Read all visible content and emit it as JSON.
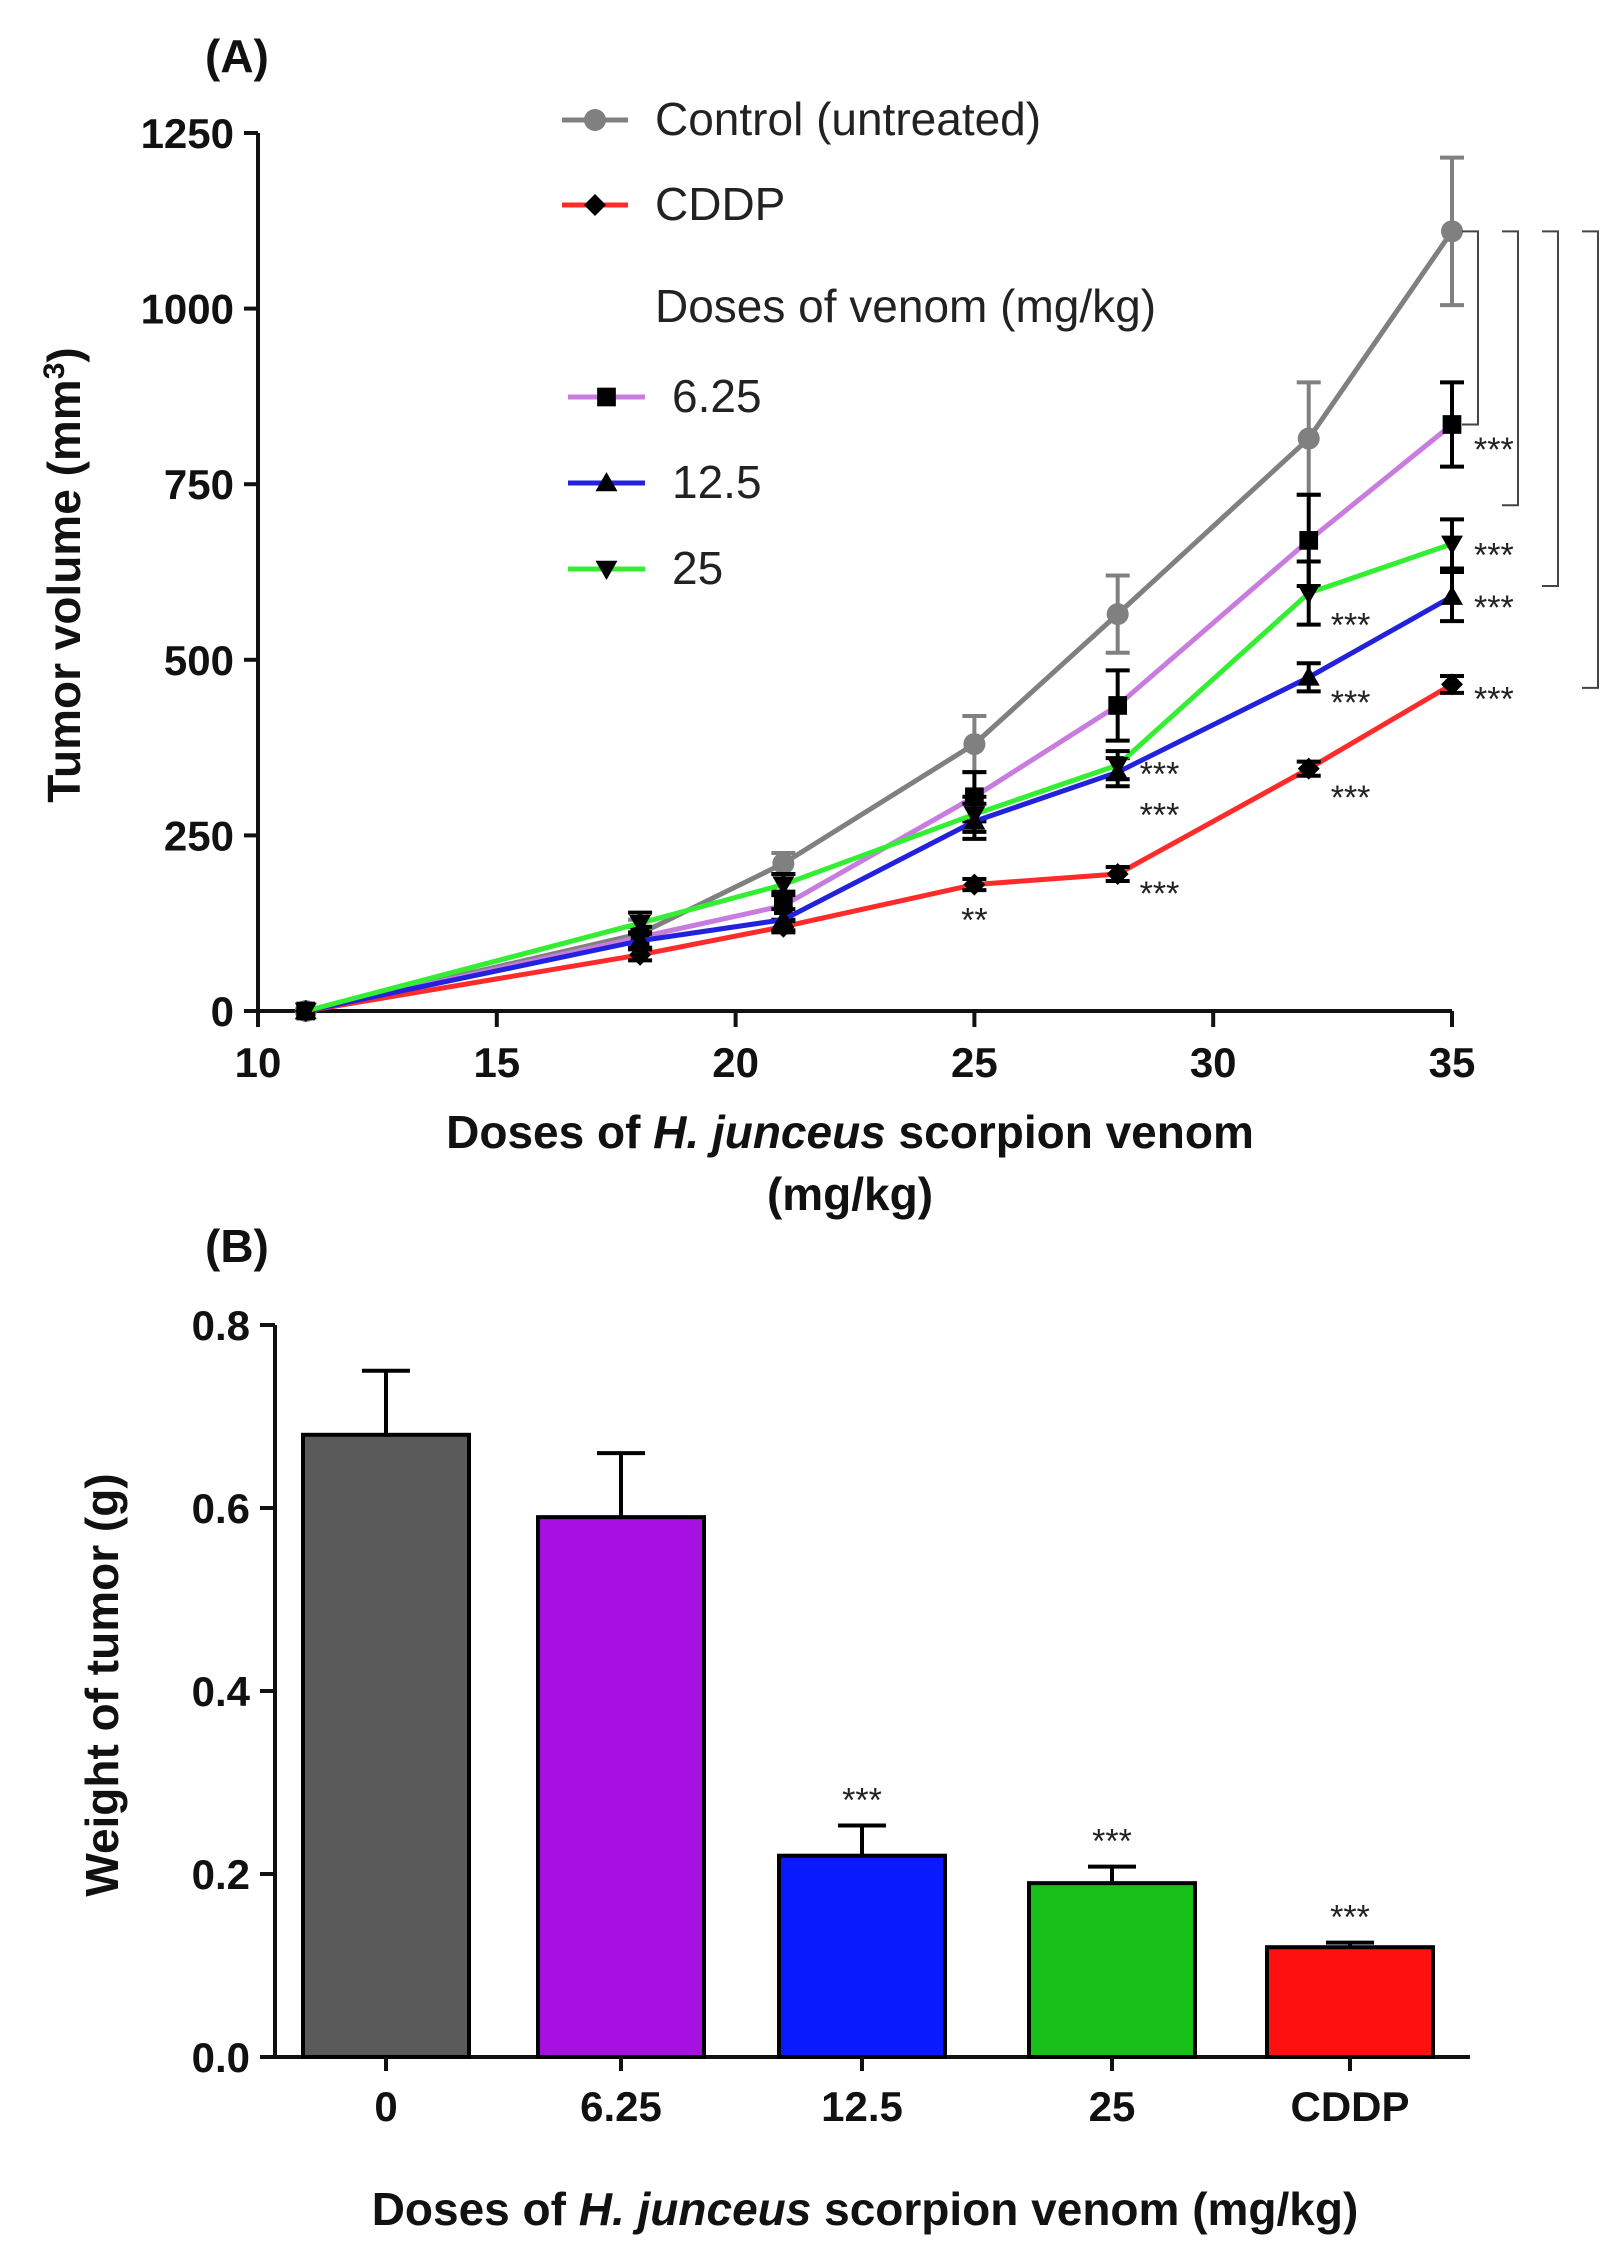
{
  "chart_data": [
    {
      "panel": "(A)",
      "type": "line",
      "xlabel_parts": [
        {
          "text": "Doses of ",
          "italic": false
        },
        {
          "text": "H. junceus",
          "italic": true
        },
        {
          "text": " scorpion venom",
          "italic": false
        }
      ],
      "xlabel_line2": "(mg/kg)",
      "ylabel": "Tumor volume (mm",
      "ylabel_sup": "3",
      "ylabel_close": ")",
      "xlim": [
        10,
        35
      ],
      "ylim": [
        0,
        1250
      ],
      "xticks": [
        10,
        15,
        20,
        25,
        30,
        35
      ],
      "yticks": [
        0,
        250,
        500,
        750,
        1000,
        1250
      ],
      "x": [
        11,
        18,
        21,
        25,
        28,
        32,
        35
      ],
      "legend_heading": "Doses of venom (mg/kg)",
      "series": [
        {
          "name": "Control (untreated)",
          "color": "#808080",
          "marker": "circle",
          "values": [
            0,
            110,
            210,
            380,
            565,
            815,
            1110
          ],
          "errors": [
            0,
            20,
            15,
            40,
            55,
            80,
            105
          ]
        },
        {
          "name": "CDDP",
          "color": "#ff2a2a",
          "marker": "diamond",
          "values": [
            0,
            80,
            120,
            180,
            195,
            345,
            465
          ],
          "errors": [
            0,
            8,
            8,
            8,
            10,
            10,
            12
          ]
        },
        {
          "name": "6.25",
          "color": "#c97ce0",
          "marker": "square",
          "values": [
            0,
            105,
            150,
            305,
            435,
            670,
            835
          ],
          "errors": [
            0,
            15,
            20,
            35,
            50,
            65,
            60
          ]
        },
        {
          "name": "12.5",
          "color": "#2222dd",
          "marker": "triangle-up",
          "values": [
            0,
            100,
            130,
            270,
            340,
            475,
            590
          ],
          "errors": [
            0,
            12,
            15,
            25,
            20,
            20,
            35
          ]
        },
        {
          "name": "25",
          "color": "#33ee33",
          "marker": "triangle-down",
          "values": [
            0,
            125,
            180,
            280,
            350,
            595,
            665
          ],
          "errors": [
            0,
            15,
            15,
            25,
            20,
            45,
            35
          ]
        }
      ],
      "annotations": [
        {
          "text": "**",
          "x": 25,
          "y": 130
        },
        {
          "text": "***",
          "x": 28,
          "y": 338
        },
        {
          "text": "***",
          "x": 28,
          "y": 280
        },
        {
          "text": "***",
          "x": 28,
          "y": 168
        },
        {
          "text": "***",
          "x": 32,
          "y": 550
        },
        {
          "text": "***",
          "x": 32,
          "y": 440
        },
        {
          "text": "***",
          "x": 32,
          "y": 305
        },
        {
          "text": "***",
          "x": 35,
          "y": 800
        },
        {
          "text": "***",
          "x": 35,
          "y": 650
        },
        {
          "text": "***",
          "x": 35,
          "y": 575
        },
        {
          "text": "***",
          "x": 35,
          "y": 445
        }
      ],
      "brackets": [
        {
          "from": 1110,
          "to": 835
        },
        {
          "from": 1110,
          "to": 720
        },
        {
          "from": 1110,
          "to": 605
        },
        {
          "from": 1110,
          "to": 460
        }
      ]
    },
    {
      "panel": "(B)",
      "type": "bar",
      "categories": [
        "0",
        "6.25",
        "12.5",
        "25",
        "CDDP"
      ],
      "values": [
        0.68,
        0.59,
        0.22,
        0.19,
        0.12
      ],
      "errors": [
        0.07,
        0.07,
        0.033,
        0.018,
        0.005
      ],
      "colors": [
        "#5a5a5a",
        "#a610e0",
        "#0a1aff",
        "#16c016",
        "#ff1010"
      ],
      "significance": [
        "",
        "",
        "***",
        "***",
        "***"
      ],
      "ylim": [
        0.0,
        0.8
      ],
      "yticks": [
        "0.0",
        "0.2",
        "0.4",
        "0.6",
        "0.8"
      ],
      "ylabel": "Weight of tumor (g)",
      "xlabel_parts": [
        {
          "text": "Doses of ",
          "italic": false
        },
        {
          "text": "H. junceus",
          "italic": true
        },
        {
          "text": " scorpion venom (mg/kg)",
          "italic": false
        }
      ]
    }
  ]
}
